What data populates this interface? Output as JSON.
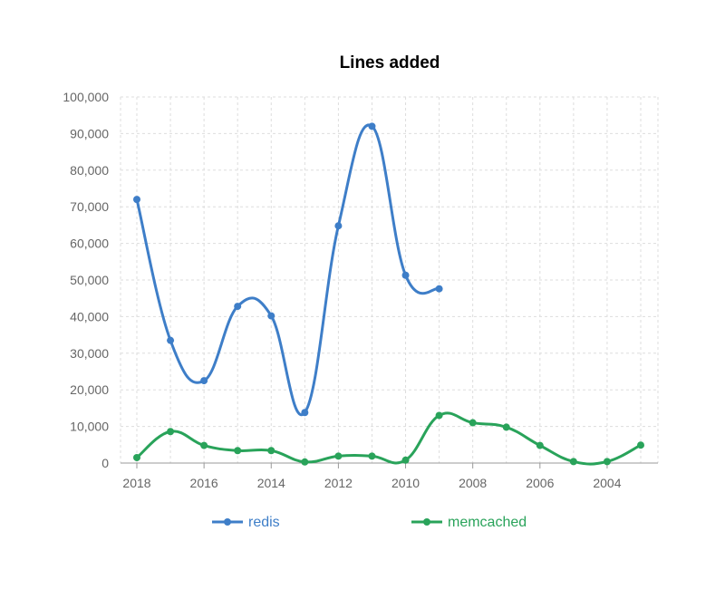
{
  "chart_data": {
    "type": "line",
    "title": "Lines added",
    "xlabel": "",
    "ylabel": "",
    "x": [
      2018,
      2017,
      2016,
      2015,
      2014,
      2013,
      2012,
      2011,
      2010,
      2009,
      2008,
      2007,
      2006,
      2005,
      2004,
      2003
    ],
    "x_ticks": [
      "2018",
      "2016",
      "2014",
      "2012",
      "2010",
      "2008",
      "2006",
      "2004"
    ],
    "x_reversed": true,
    "xlim": [
      2018,
      2003
    ],
    "ylim": [
      0,
      100000
    ],
    "y_ticks": [
      "0",
      "10,000",
      "20,000",
      "30,000",
      "40,000",
      "50,000",
      "60,000",
      "70,000",
      "80,000",
      "90,000",
      "100,000"
    ],
    "grid": true,
    "legend_position": "bottom",
    "series": [
      {
        "name": "redis",
        "color": "#3e7ec8",
        "x": [
          2018,
          2017,
          2016,
          2015,
          2014,
          2013,
          2012,
          2011,
          2010,
          2009
        ],
        "values": [
          72000,
          33500,
          22500,
          42800,
          40200,
          13800,
          64800,
          92000,
          51300,
          47600
        ]
      },
      {
        "name": "memcached",
        "color": "#29a35a",
        "x": [
          2018,
          2017,
          2016,
          2015,
          2014,
          2013,
          2012,
          2011,
          2010,
          2009,
          2008,
          2007,
          2006,
          2005,
          2004,
          2003
        ],
        "values": [
          1500,
          8600,
          4800,
          3400,
          3400,
          300,
          1900,
          1900,
          800,
          13000,
          11000,
          9800,
          4800,
          400,
          400,
          4900
        ]
      }
    ]
  }
}
